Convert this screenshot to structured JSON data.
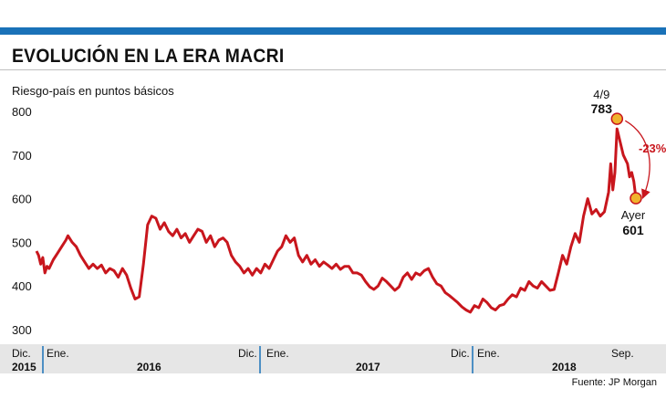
{
  "header": {
    "title": "EVOLUCIÓN EN LA ERA MACRI"
  },
  "colors": {
    "accent_bar": "#1a72b8",
    "line": "#c8161d",
    "marker_fill": "#f0b32d",
    "axis_tick": "#1a72b8",
    "timeline_bg": "#e6e6e6"
  },
  "chart_data": {
    "type": "line",
    "ylabel": "Riesgo-país en puntos básicos",
    "yticks": [
      800,
      700,
      600,
      500,
      400,
      300
    ],
    "ylim": [
      300,
      800
    ],
    "grid": false,
    "source": "Fuente: JP Morgan",
    "x_month_labels": [
      "Dic.",
      "Ene.",
      "Dic.",
      "Ene.",
      "Dic.",
      "Ene.",
      "Sep."
    ],
    "x_year_labels": [
      "2015",
      "2016",
      "2017",
      "2018"
    ],
    "series": [
      {
        "values": [
          [
            2015.92,
            480
          ],
          [
            2015.93,
            470
          ],
          [
            2015.94,
            450
          ],
          [
            2015.95,
            465
          ],
          [
            2015.96,
            430
          ],
          [
            2015.97,
            445
          ],
          [
            2015.98,
            440
          ],
          [
            2016.0,
            460
          ],
          [
            2016.02,
            475
          ],
          [
            2016.04,
            490
          ],
          [
            2016.06,
            505
          ],
          [
            2016.07,
            515
          ],
          [
            2016.09,
            500
          ],
          [
            2016.11,
            490
          ],
          [
            2016.13,
            470
          ],
          [
            2016.15,
            455
          ],
          [
            2016.17,
            440
          ],
          [
            2016.19,
            450
          ],
          [
            2016.21,
            440
          ],
          [
            2016.23,
            448
          ],
          [
            2016.25,
            430
          ],
          [
            2016.27,
            440
          ],
          [
            2016.29,
            435
          ],
          [
            2016.31,
            420
          ],
          [
            2016.33,
            440
          ],
          [
            2016.35,
            425
          ],
          [
            2016.37,
            395
          ],
          [
            2016.39,
            370
          ],
          [
            2016.41,
            375
          ],
          [
            2016.43,
            450
          ],
          [
            2016.45,
            540
          ],
          [
            2016.47,
            560
          ],
          [
            2016.49,
            555
          ],
          [
            2016.51,
            530
          ],
          [
            2016.53,
            545
          ],
          [
            2016.55,
            525
          ],
          [
            2016.57,
            515
          ],
          [
            2016.59,
            530
          ],
          [
            2016.61,
            510
          ],
          [
            2016.63,
            520
          ],
          [
            2016.65,
            500
          ],
          [
            2016.67,
            515
          ],
          [
            2016.69,
            530
          ],
          [
            2016.71,
            525
          ],
          [
            2016.73,
            500
          ],
          [
            2016.75,
            515
          ],
          [
            2016.77,
            490
          ],
          [
            2016.79,
            505
          ],
          [
            2016.81,
            510
          ],
          [
            2016.83,
            500
          ],
          [
            2016.85,
            470
          ],
          [
            2016.87,
            455
          ],
          [
            2016.89,
            445
          ],
          [
            2016.91,
            430
          ],
          [
            2016.93,
            440
          ],
          [
            2016.95,
            425
          ],
          [
            2016.97,
            440
          ],
          [
            2016.99,
            430
          ],
          [
            2017.01,
            450
          ],
          [
            2017.03,
            440
          ],
          [
            2017.05,
            460
          ],
          [
            2017.07,
            480
          ],
          [
            2017.09,
            490
          ],
          [
            2017.11,
            515
          ],
          [
            2017.13,
            500
          ],
          [
            2017.15,
            510
          ],
          [
            2017.17,
            470
          ],
          [
            2017.19,
            455
          ],
          [
            2017.21,
            470
          ],
          [
            2017.23,
            450
          ],
          [
            2017.25,
            460
          ],
          [
            2017.27,
            445
          ],
          [
            2017.29,
            455
          ],
          [
            2017.31,
            448
          ],
          [
            2017.33,
            440
          ],
          [
            2017.35,
            450
          ],
          [
            2017.37,
            438
          ],
          [
            2017.39,
            445
          ],
          [
            2017.41,
            445
          ],
          [
            2017.43,
            430
          ],
          [
            2017.45,
            430
          ],
          [
            2017.47,
            425
          ],
          [
            2017.49,
            410
          ],
          [
            2017.51,
            398
          ],
          [
            2017.53,
            392
          ],
          [
            2017.55,
            400
          ],
          [
            2017.57,
            418
          ],
          [
            2017.59,
            410
          ],
          [
            2017.61,
            400
          ],
          [
            2017.63,
            390
          ],
          [
            2017.65,
            398
          ],
          [
            2017.67,
            420
          ],
          [
            2017.69,
            430
          ],
          [
            2017.71,
            415
          ],
          [
            2017.73,
            430
          ],
          [
            2017.75,
            425
          ],
          [
            2017.77,
            435
          ],
          [
            2017.79,
            440
          ],
          [
            2017.81,
            420
          ],
          [
            2017.83,
            405
          ],
          [
            2017.85,
            400
          ],
          [
            2017.87,
            385
          ],
          [
            2017.89,
            378
          ],
          [
            2017.91,
            370
          ],
          [
            2017.93,
            362
          ],
          [
            2017.95,
            352
          ],
          [
            2017.97,
            345
          ],
          [
            2017.99,
            340
          ],
          [
            2018.01,
            355
          ],
          [
            2018.03,
            350
          ],
          [
            2018.05,
            370
          ],
          [
            2018.07,
            362
          ],
          [
            2018.09,
            350
          ],
          [
            2018.11,
            345
          ],
          [
            2018.13,
            355
          ],
          [
            2018.15,
            358
          ],
          [
            2018.17,
            370
          ],
          [
            2018.19,
            380
          ],
          [
            2018.21,
            375
          ],
          [
            2018.23,
            395
          ],
          [
            2018.25,
            390
          ],
          [
            2018.27,
            410
          ],
          [
            2018.29,
            400
          ],
          [
            2018.31,
            395
          ],
          [
            2018.33,
            410
          ],
          [
            2018.35,
            400
          ],
          [
            2018.37,
            390
          ],
          [
            2018.39,
            392
          ],
          [
            2018.41,
            430
          ],
          [
            2018.43,
            470
          ],
          [
            2018.45,
            450
          ],
          [
            2018.47,
            490
          ],
          [
            2018.49,
            520
          ],
          [
            2018.51,
            500
          ],
          [
            2018.53,
            560
          ],
          [
            2018.55,
            600
          ],
          [
            2018.57,
            565
          ],
          [
            2018.59,
            575
          ],
          [
            2018.61,
            560
          ],
          [
            2018.63,
            570
          ],
          [
            2018.65,
            615
          ],
          [
            2018.66,
            680
          ],
          [
            2018.67,
            620
          ],
          [
            2018.68,
            660
          ],
          [
            2018.69,
            760
          ],
          [
            2018.7,
            740
          ],
          [
            2018.72,
            700
          ],
          [
            2018.74,
            680
          ],
          [
            2018.75,
            650
          ],
          [
            2018.76,
            660
          ],
          [
            2018.77,
            640
          ],
          [
            2018.78,
            601
          ]
        ],
        "color": "#c8161d"
      }
    ],
    "annotations": [
      {
        "date": "4/9",
        "value": 783,
        "value_label": "783"
      },
      {
        "date": "Ayer",
        "value": 601,
        "value_label": "601"
      },
      {
        "change_label": "-23%"
      }
    ]
  }
}
